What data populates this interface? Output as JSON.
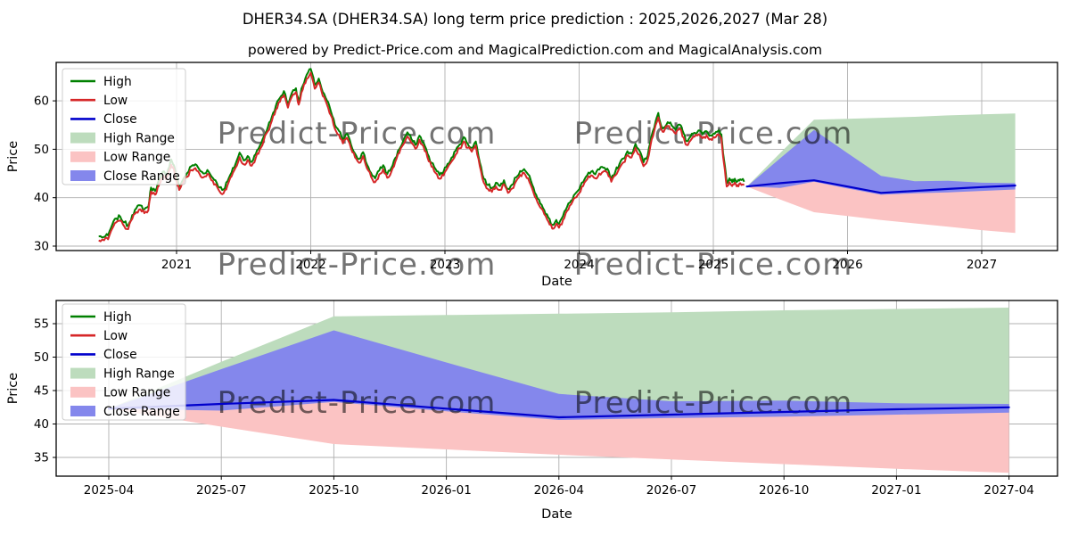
{
  "title": "DHER34.SA (DHER34.SA) long term price prediction : 2025,2026,2027 (Mar 28)",
  "subtitle": "powered by Predict-Price.com and MagicalPrediction.com and MagicalAnalysis.com",
  "watermark_text": "Predict-Price.com",
  "colors": {
    "high_line": "#008000",
    "low_line": "#d62728",
    "close_line": "#0000cc",
    "high_range_fill": "#bddcbd",
    "low_range_fill": "#fbc3c3",
    "close_range_fill": "#8487ec",
    "grid": "#b0b0b0",
    "frame": "#000000",
    "watermark": "#d2d2d2",
    "background": "#ffffff",
    "text": "#000000"
  },
  "legend": {
    "items": [
      {
        "label": "High",
        "type": "line",
        "color": "#008000"
      },
      {
        "label": "Low",
        "type": "line",
        "color": "#d62728"
      },
      {
        "label": "Close",
        "type": "line",
        "color": "#0000cc"
      },
      {
        "label": "High Range",
        "type": "fill",
        "color": "#bddcbd"
      },
      {
        "label": "Low Range",
        "type": "fill",
        "color": "#fbc3c3"
      },
      {
        "label": "Close Range",
        "type": "fill",
        "color": "#8487ec"
      }
    ]
  },
  "chart_data": [
    {
      "type": "line+area",
      "title": "",
      "xlabel": "Date",
      "ylabel": "Price",
      "xticks": [
        "2021",
        "2022",
        "2023",
        "2024",
        "2025",
        "2026",
        "2027"
      ],
      "xtick_years": [
        2021,
        2022,
        2023,
        2024,
        2025,
        2026,
        2027
      ],
      "yticks": [
        30,
        40,
        50,
        60
      ],
      "xlim": [
        2020.1,
        2027.57
      ],
      "ylim": [
        29.1,
        68.0
      ],
      "grid": true,
      "legend_position": "upper left",
      "historical": {
        "description": "daily High/Low price history, points are [year, low, high]",
        "points": [
          [
            2020.42,
            31.2,
            32.0
          ],
          [
            2020.46,
            31.2,
            31.9
          ],
          [
            2020.49,
            31.4,
            32.2
          ],
          [
            2020.52,
            33.6,
            34.4
          ],
          [
            2020.55,
            34.9,
            35.7
          ],
          [
            2020.58,
            35.3,
            36.1
          ],
          [
            2020.61,
            34.1,
            34.9
          ],
          [
            2020.64,
            33.5,
            34.3
          ],
          [
            2020.67,
            35.6,
            36.4
          ],
          [
            2020.7,
            37.0,
            37.8
          ],
          [
            2020.73,
            37.6,
            38.4
          ],
          [
            2020.76,
            36.8,
            37.6
          ],
          [
            2020.79,
            37.4,
            38.2
          ],
          [
            2020.81,
            41.3,
            42.1
          ],
          [
            2020.84,
            40.6,
            41.4
          ],
          [
            2020.86,
            42.2,
            43.0
          ],
          [
            2020.88,
            43.1,
            43.9
          ],
          [
            2020.9,
            44.6,
            45.4
          ],
          [
            2020.92,
            43.8,
            44.6
          ],
          [
            2020.94,
            45.2,
            46.0
          ],
          [
            2020.96,
            46.8,
            47.9
          ],
          [
            2020.98,
            45.9,
            46.7
          ],
          [
            2021.0,
            43.4,
            44.2
          ],
          [
            2021.02,
            41.6,
            42.4
          ],
          [
            2021.05,
            43.0,
            43.8
          ],
          [
            2021.08,
            44.3,
            45.1
          ],
          [
            2021.11,
            45.7,
            46.5
          ],
          [
            2021.14,
            46.1,
            46.9
          ],
          [
            2021.17,
            45.0,
            45.8
          ],
          [
            2021.2,
            44.2,
            45.0
          ],
          [
            2021.23,
            44.9,
            45.7
          ],
          [
            2021.26,
            43.6,
            44.4
          ],
          [
            2021.29,
            42.8,
            43.6
          ],
          [
            2021.32,
            41.3,
            42.1
          ],
          [
            2021.35,
            40.9,
            41.7
          ],
          [
            2021.38,
            42.6,
            43.4
          ],
          [
            2021.41,
            44.4,
            45.2
          ],
          [
            2021.44,
            46.2,
            47.0
          ],
          [
            2021.47,
            48.4,
            49.3
          ],
          [
            2021.5,
            46.9,
            47.7
          ],
          [
            2021.53,
            47.8,
            48.6
          ],
          [
            2021.56,
            46.6,
            47.4
          ],
          [
            2021.59,
            48.2,
            49.0
          ],
          [
            2021.62,
            49.9,
            50.7
          ],
          [
            2021.65,
            51.8,
            52.6
          ],
          [
            2021.68,
            53.7,
            54.5
          ],
          [
            2021.71,
            55.9,
            56.7
          ],
          [
            2021.74,
            58.2,
            59.0
          ],
          [
            2021.77,
            59.8,
            60.6
          ],
          [
            2021.8,
            61.2,
            62.0
          ],
          [
            2021.83,
            58.6,
            59.4
          ],
          [
            2021.86,
            60.9,
            61.7
          ],
          [
            2021.89,
            61.8,
            62.6
          ],
          [
            2021.91,
            59.2,
            60.0
          ],
          [
            2021.94,
            62.3,
            63.1
          ],
          [
            2021.97,
            64.6,
            65.4
          ],
          [
            2022.0,
            65.8,
            66.6
          ],
          [
            2022.03,
            62.5,
            63.3
          ],
          [
            2022.06,
            63.8,
            64.6
          ],
          [
            2022.09,
            61.0,
            61.8
          ],
          [
            2022.12,
            59.3,
            60.1
          ],
          [
            2022.15,
            57.0,
            57.8
          ],
          [
            2022.18,
            54.2,
            55.0
          ],
          [
            2022.21,
            53.0,
            53.8
          ],
          [
            2022.24,
            51.2,
            52.0
          ],
          [
            2022.27,
            52.4,
            53.2
          ],
          [
            2022.3,
            50.2,
            51.0
          ],
          [
            2022.33,
            48.3,
            49.1
          ],
          [
            2022.36,
            47.2,
            48.0
          ],
          [
            2022.39,
            48.6,
            49.4
          ],
          [
            2022.42,
            46.0,
            46.8
          ],
          [
            2022.45,
            44.3,
            45.1
          ],
          [
            2022.48,
            43.2,
            44.0
          ],
          [
            2022.51,
            44.8,
            45.6
          ],
          [
            2022.54,
            45.9,
            46.7
          ],
          [
            2022.57,
            44.1,
            44.9
          ],
          [
            2022.6,
            45.3,
            46.1
          ],
          [
            2022.63,
            47.4,
            48.2
          ],
          [
            2022.66,
            49.2,
            50.0
          ],
          [
            2022.69,
            51.0,
            51.8
          ],
          [
            2022.72,
            52.6,
            53.5
          ],
          [
            2022.75,
            51.3,
            52.1
          ],
          [
            2022.78,
            50.1,
            50.9
          ],
          [
            2022.81,
            52.0,
            52.8
          ],
          [
            2022.84,
            50.6,
            51.4
          ],
          [
            2022.87,
            48.3,
            49.1
          ],
          [
            2022.9,
            46.4,
            47.2
          ],
          [
            2022.93,
            45.1,
            45.9
          ],
          [
            2022.96,
            43.9,
            44.7
          ],
          [
            2022.99,
            44.6,
            45.4
          ],
          [
            2023.02,
            46.2,
            47.0
          ],
          [
            2023.05,
            47.5,
            48.3
          ],
          [
            2023.08,
            48.9,
            49.7
          ],
          [
            2023.11,
            50.2,
            51.0
          ],
          [
            2023.14,
            51.6,
            52.5
          ],
          [
            2023.17,
            50.3,
            51.1
          ],
          [
            2023.2,
            49.5,
            50.3
          ],
          [
            2023.23,
            50.8,
            51.6
          ],
          [
            2023.26,
            46.5,
            47.3
          ],
          [
            2023.29,
            43.1,
            43.9
          ],
          [
            2023.32,
            41.8,
            42.6
          ],
          [
            2023.35,
            41.2,
            42.0
          ],
          [
            2023.38,
            42.3,
            43.1
          ],
          [
            2023.41,
            41.6,
            42.4
          ],
          [
            2023.44,
            42.8,
            43.6
          ],
          [
            2023.47,
            41.0,
            41.8
          ],
          [
            2023.5,
            41.9,
            42.7
          ],
          [
            2023.53,
            43.4,
            44.2
          ],
          [
            2023.56,
            44.7,
            45.5
          ],
          [
            2023.59,
            45.1,
            45.9
          ],
          [
            2023.62,
            44.0,
            44.8
          ],
          [
            2023.65,
            41.9,
            42.7
          ],
          [
            2023.68,
            39.8,
            40.6
          ],
          [
            2023.71,
            38.0,
            38.8
          ],
          [
            2023.74,
            36.6,
            37.4
          ],
          [
            2023.77,
            35.1,
            35.9
          ],
          [
            2023.8,
            33.6,
            34.4
          ],
          [
            2023.83,
            34.6,
            35.4
          ],
          [
            2023.85,
            33.8,
            34.6
          ],
          [
            2023.88,
            35.4,
            36.2
          ],
          [
            2023.91,
            37.3,
            38.1
          ],
          [
            2023.94,
            38.6,
            39.4
          ],
          [
            2023.97,
            40.0,
            40.8
          ],
          [
            2024.0,
            40.9,
            41.7
          ],
          [
            2024.03,
            42.4,
            43.2
          ],
          [
            2024.06,
            43.8,
            44.6
          ],
          [
            2024.09,
            44.6,
            45.4
          ],
          [
            2024.12,
            44.0,
            44.8
          ],
          [
            2024.15,
            45.0,
            45.8
          ],
          [
            2024.18,
            45.4,
            46.2
          ],
          [
            2024.21,
            45.2,
            46.0
          ],
          [
            2024.24,
            43.3,
            44.1
          ],
          [
            2024.27,
            44.6,
            45.4
          ],
          [
            2024.3,
            46.1,
            46.9
          ],
          [
            2024.33,
            47.3,
            48.1
          ],
          [
            2024.36,
            48.8,
            49.6
          ],
          [
            2024.39,
            48.3,
            49.1
          ],
          [
            2024.42,
            50.3,
            51.1
          ],
          [
            2024.45,
            48.9,
            49.7
          ],
          [
            2024.48,
            46.5,
            47.3
          ],
          [
            2024.51,
            47.8,
            48.6
          ],
          [
            2024.54,
            52.0,
            52.8
          ],
          [
            2024.57,
            55.0,
            55.8
          ],
          [
            2024.59,
            56.6,
            57.5
          ],
          [
            2024.61,
            54.2,
            55.0
          ],
          [
            2024.63,
            53.6,
            54.4
          ],
          [
            2024.66,
            54.8,
            55.6
          ],
          [
            2024.69,
            54.1,
            54.9
          ],
          [
            2024.72,
            53.2,
            54.0
          ],
          [
            2024.75,
            54.3,
            55.1
          ],
          [
            2024.78,
            52.4,
            53.2
          ],
          [
            2024.8,
            50.9,
            51.7
          ],
          [
            2024.83,
            51.8,
            52.6
          ],
          [
            2024.86,
            52.6,
            53.4
          ],
          [
            2024.89,
            53.1,
            53.9
          ],
          [
            2024.92,
            52.3,
            53.1
          ],
          [
            2024.95,
            52.9,
            53.7
          ],
          [
            2024.98,
            52.1,
            52.9
          ],
          [
            2025.01,
            52.4,
            53.2
          ],
          [
            2025.04,
            53.0,
            53.9
          ],
          [
            2025.06,
            52.3,
            53.1
          ],
          [
            2025.08,
            47.0,
            47.8
          ],
          [
            2025.1,
            42.3,
            43.1
          ],
          [
            2025.12,
            43.2,
            44.0
          ],
          [
            2025.14,
            42.4,
            43.2
          ],
          [
            2025.16,
            43.1,
            43.9
          ],
          [
            2025.18,
            42.6,
            43.4
          ],
          [
            2025.2,
            43.0,
            43.8
          ],
          [
            2025.23,
            42.6,
            43.3
          ]
        ]
      },
      "prediction": {
        "x_labels": [
          "2025-04",
          "2025-07",
          "2025-10",
          "2026-01",
          "2026-04",
          "2026-07",
          "2026-10",
          "2027-01",
          "2027-04"
        ],
        "x_years": [
          2025.25,
          2025.5,
          2025.75,
          2026.0,
          2026.25,
          2026.5,
          2026.75,
          2027.0,
          2027.25
        ],
        "close": [
          42.3,
          43.0,
          43.6,
          42.3,
          41.0,
          41.4,
          41.8,
          42.2,
          42.5
        ],
        "close_range_top": [
          42.3,
          48.2,
          54.0,
          49.2,
          44.5,
          43.4,
          43.5,
          43.1,
          43.0
        ],
        "close_range_bottom": [
          42.3,
          42.0,
          43.3,
          41.9,
          40.6,
          40.9,
          41.1,
          41.4,
          41.7
        ],
        "high_range_top": [
          42.3,
          49.3,
          56.1,
          56.3,
          56.5,
          56.7,
          57.0,
          57.2,
          57.4
        ],
        "low_range_bottom": [
          42.3,
          39.6,
          37.0,
          36.2,
          35.4,
          34.7,
          34.0,
          33.3,
          32.7
        ]
      }
    },
    {
      "type": "line+area",
      "title": "",
      "xlabel": "Date",
      "ylabel": "Price",
      "xticks": [
        "2025-04",
        "2025-07",
        "2025-10",
        "2026-01",
        "2026-04",
        "2026-07",
        "2026-10",
        "2027-01",
        "2027-04"
      ],
      "yticks": [
        35,
        40,
        45,
        50,
        55
      ],
      "ylim": [
        32.2,
        58.5
      ],
      "grid": true,
      "legend_position": "upper left",
      "prediction": {
        "x_labels": [
          "2025-04",
          "2025-07",
          "2025-10",
          "2026-01",
          "2026-04",
          "2026-07",
          "2026-10",
          "2027-01",
          "2027-04"
        ],
        "close": [
          42.3,
          43.0,
          43.6,
          42.3,
          41.0,
          41.4,
          41.8,
          42.2,
          42.5
        ],
        "close_range_top": [
          42.3,
          48.2,
          54.0,
          49.2,
          44.5,
          43.4,
          43.5,
          43.1,
          43.0
        ],
        "close_range_bottom": [
          42.3,
          42.0,
          43.3,
          41.9,
          40.6,
          40.9,
          41.1,
          41.4,
          41.7
        ],
        "high_range_top": [
          42.3,
          49.3,
          56.1,
          56.3,
          56.5,
          56.7,
          57.0,
          57.2,
          57.4
        ],
        "low_range_bottom": [
          42.3,
          39.6,
          37.0,
          36.2,
          35.4,
          34.7,
          34.0,
          33.3,
          32.7
        ]
      }
    }
  ]
}
